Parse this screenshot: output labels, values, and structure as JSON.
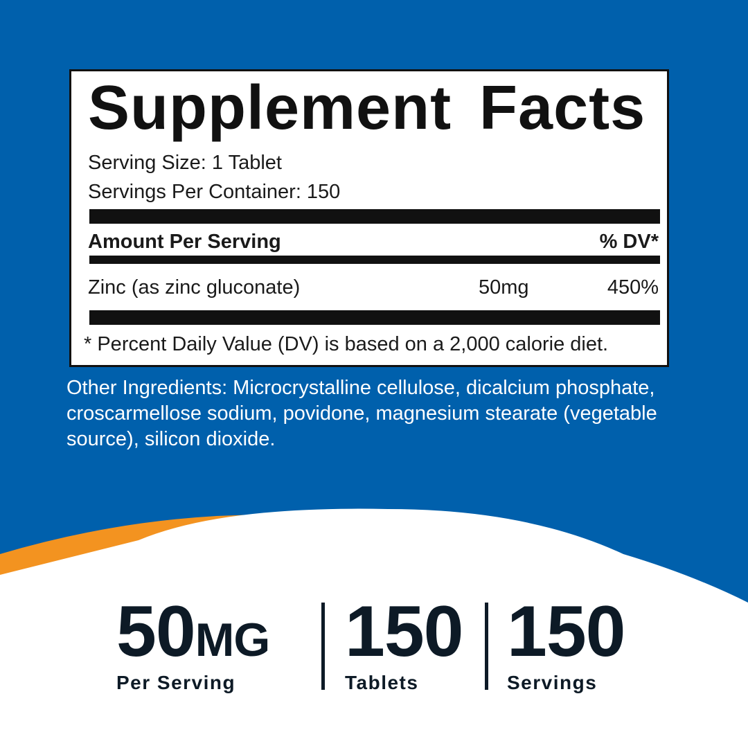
{
  "colors": {
    "background": "#0060ac",
    "accent": "#f39320",
    "text_dark": "#0d1a26"
  },
  "facts": {
    "title": "Supplement Facts",
    "serving_size": "Serving Size: 1 Tablet",
    "servings_per_container": "Servings Per Container: 150",
    "amount_header": "Amount Per Serving",
    "dv_header": "% DV*",
    "rows": [
      {
        "name": "Zinc (as zinc gluconate)",
        "amount": "50mg",
        "dv": "450%"
      }
    ],
    "footnote": "* Percent Daily Value (DV) is based on a 2,000 calorie diet."
  },
  "other_ingredients": "Other Ingredients: Microcrystalline cellulose, dicalcium phosphate, croscarmellose sodium, povidone, magnesium stearate (vegetable source), silicon dioxide.",
  "stats": [
    {
      "value": "50",
      "unit": "MG",
      "label": "Per Serving"
    },
    {
      "value": "150",
      "label": "Tablets"
    },
    {
      "value": "150",
      "label": "Servings"
    }
  ]
}
